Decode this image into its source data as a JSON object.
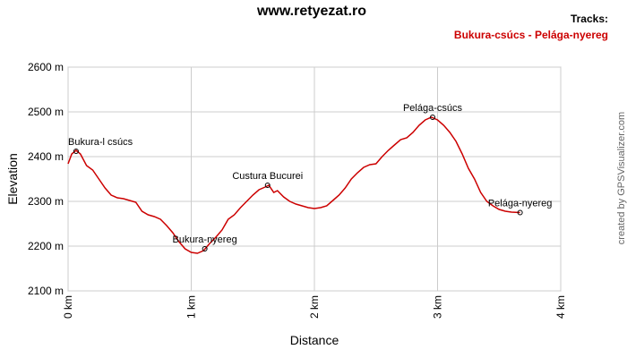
{
  "chart_data": {
    "type": "line",
    "title": "www.retyezat.ro",
    "legend_title": "Tracks:",
    "credit": "created by GPSVisualizer.com",
    "xlabel": "Distance",
    "ylabel": "Elevation",
    "xlim": [
      0,
      4
    ],
    "ylim": [
      2100,
      2600
    ],
    "xticks": [
      {
        "value": 0,
        "label": "0 km"
      },
      {
        "value": 1,
        "label": "1 km"
      },
      {
        "value": 2,
        "label": "2 km"
      },
      {
        "value": 3,
        "label": "3 km"
      },
      {
        "value": 4,
        "label": "4 km"
      }
    ],
    "yticks": [
      {
        "value": 2100,
        "label": "2100 m"
      },
      {
        "value": 2200,
        "label": "2200 m"
      },
      {
        "value": 2300,
        "label": "2300 m"
      },
      {
        "value": 2400,
        "label": "2400 m"
      },
      {
        "value": 2500,
        "label": "2500 m"
      },
      {
        "value": 2600,
        "label": "2600 m"
      }
    ],
    "grid": true,
    "x": [
      0,
      0.03,
      0.065,
      0.1,
      0.15,
      0.2,
      0.25,
      0.3,
      0.35,
      0.4,
      0.45,
      0.5,
      0.55,
      0.6,
      0.65,
      0.7,
      0.75,
      0.8,
      0.85,
      0.9,
      0.95,
      1.0,
      1.05,
      1.1,
      1.15,
      1.2,
      1.25,
      1.3,
      1.35,
      1.4,
      1.45,
      1.5,
      1.55,
      1.6,
      1.63,
      1.67,
      1.7,
      1.75,
      1.8,
      1.85,
      1.9,
      1.95,
      2.0,
      2.05,
      2.1,
      2.15,
      2.2,
      2.25,
      2.3,
      2.35,
      2.4,
      2.45,
      2.5,
      2.55,
      2.6,
      2.65,
      2.7,
      2.75,
      2.8,
      2.85,
      2.9,
      2.95,
      3.0,
      3.05,
      3.1,
      3.15,
      3.2,
      3.25,
      3.3,
      3.35,
      3.4,
      3.45,
      3.5,
      3.55,
      3.6,
      3.67
    ],
    "series": [
      {
        "name": "Bukura-csúcs - Pelága-nyereg",
        "color": "#cc0000",
        "values": [
          2384,
          2406,
          2414,
          2406,
          2380,
          2370,
          2350,
          2330,
          2314,
          2308,
          2306,
          2302,
          2298,
          2278,
          2270,
          2266,
          2260,
          2246,
          2230,
          2210,
          2194,
          2186,
          2184,
          2190,
          2206,
          2220,
          2236,
          2260,
          2270,
          2286,
          2300,
          2314,
          2326,
          2332,
          2336,
          2320,
          2324,
          2310,
          2300,
          2294,
          2290,
          2286,
          2284,
          2286,
          2290,
          2302,
          2314,
          2330,
          2350,
          2364,
          2376,
          2382,
          2384,
          2400,
          2414,
          2426,
          2438,
          2442,
          2454,
          2470,
          2482,
          2488,
          2482,
          2470,
          2454,
          2434,
          2406,
          2374,
          2350,
          2320,
          2300,
          2290,
          2282,
          2278,
          2276,
          2275
        ]
      }
    ],
    "annotations": [
      {
        "text": "Bukura-l csúcs",
        "x": 0.065,
        "y": 2412
      },
      {
        "text": "Bukura-nyereg",
        "x": 1.11,
        "y": 2194
      },
      {
        "text": "Custura Bucurei",
        "x": 1.62,
        "y": 2336
      },
      {
        "text": "Pelága-csúcs",
        "x": 2.96,
        "y": 2488
      },
      {
        "text": "Pelága-nyereg",
        "x": 3.67,
        "y": 2275
      }
    ]
  }
}
